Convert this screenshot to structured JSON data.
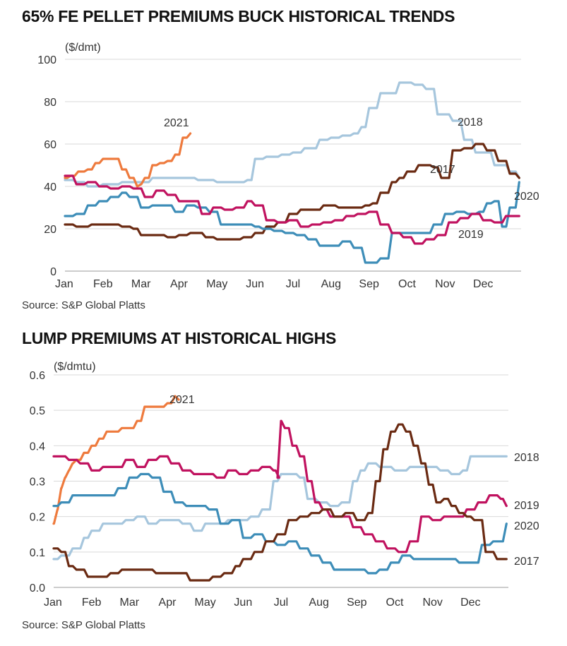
{
  "charts": [
    {
      "title": "65% FE PELLET PREMIUMS BUCK HISTORICAL TRENDS",
      "source": "Source: S&P Global Platts"
    },
    {
      "title": "LUMP PREMIUMS AT HISTORICAL HIGHS",
      "source": "Source: S&P Global Platts"
    }
  ],
  "chart_data": [
    {
      "type": "line",
      "title": "65% FE PELLET PREMIUMS BUCK HISTORICAL TRENDS",
      "ylabel": "($/dmt)",
      "xlabel": "",
      "ylim": [
        0,
        100
      ],
      "yticks": [
        0,
        20,
        40,
        60,
        80,
        100
      ],
      "ytick_labels": [
        "0",
        "20",
        "40",
        "60",
        "80",
        "100"
      ],
      "xlim": [
        0,
        12
      ],
      "xtick_labels": [
        "Jan",
        "Feb",
        "Mar",
        "Apr",
        "May",
        "Jun",
        "Jul",
        "Aug",
        "Sep",
        "Oct",
        "Nov",
        "Dec"
      ],
      "grid": "horizontal",
      "source": "Source: S&P Global Platts",
      "series": [
        {
          "name": "2018",
          "color": "#a6c6dd",
          "x": [
            0,
            0.3,
            0.6,
            1.0,
            1.5,
            2.0,
            2.3,
            3.0,
            3.5,
            4.0,
            4.3,
            4.8,
            5.0,
            5.3,
            5.7,
            6.0,
            6.3,
            6.7,
            7.0,
            7.3,
            7.6,
            7.8,
            8.0,
            8.3,
            8.8,
            9.2,
            9.5,
            9.8,
            10.2,
            10.5,
            10.8,
            11.3,
            11.7,
            11.95
          ],
          "y": [
            43,
            42,
            40,
            41,
            42,
            42,
            44,
            44,
            43,
            42,
            42,
            43,
            53,
            54,
            55,
            56,
            58,
            62,
            63,
            64,
            65,
            68,
            77,
            84,
            89,
            88,
            86,
            74,
            71,
            62,
            56,
            50,
            47,
            44
          ]
        },
        {
          "name": "2021",
          "color": "#ee7a3d",
          "x": [
            0,
            0.15,
            0.35,
            0.6,
            0.8,
            1.0,
            1.25,
            1.5,
            1.7,
            1.9,
            2.0,
            2.1,
            2.3,
            2.5,
            2.7,
            2.9,
            3.0,
            3.1,
            3.3
          ],
          "y": [
            44,
            45,
            47,
            48,
            51,
            53,
            53,
            48,
            44,
            40,
            41,
            44,
            50,
            51,
            52,
            55,
            55,
            63,
            65
          ]
        },
        {
          "name": "2017",
          "color": "#6a2a12",
          "x": [
            0,
            0.3,
            0.7,
            1.0,
            1.5,
            1.8,
            2.0,
            2.3,
            2.7,
            3.0,
            3.3,
            3.7,
            4.0,
            4.3,
            4.7,
            5.0,
            5.3,
            5.6,
            5.9,
            6.2,
            6.5,
            6.8,
            7.2,
            7.6,
            7.9,
            8.1,
            8.3,
            8.6,
            8.8,
            9.0,
            9.3,
            9.5,
            9.7,
            9.9,
            10.2,
            10.5,
            10.8,
            11.1,
            11.4,
            11.7,
            11.95
          ],
          "y": [
            22,
            21,
            22,
            22,
            21,
            20,
            17,
            17,
            16,
            17,
            18,
            16,
            15,
            15,
            16,
            18,
            21,
            23,
            27,
            29,
            29,
            31,
            30,
            30,
            31,
            32,
            37,
            42,
            44,
            47,
            50,
            50,
            49,
            44,
            57,
            58,
            60,
            57,
            52,
            46,
            44
          ]
        },
        {
          "name": "2020",
          "color": "#3d8db8",
          "x": [
            0,
            0.3,
            0.6,
            0.9,
            1.2,
            1.5,
            1.7,
            2.0,
            2.3,
            2.6,
            2.9,
            3.2,
            3.5,
            3.8,
            4.1,
            4.4,
            4.7,
            5.0,
            5.2,
            5.5,
            5.8,
            6.1,
            6.4,
            6.7,
            7.0,
            7.3,
            7.6,
            7.9,
            8.0,
            8.3,
            8.6,
            9.0,
            9.4,
            9.7,
            10.0,
            10.3,
            10.6,
            10.9,
            11.1,
            11.3,
            11.5,
            11.7,
            11.95
          ],
          "y": [
            26,
            27,
            31,
            33,
            35,
            37,
            35,
            30,
            31,
            31,
            28,
            31,
            30,
            28,
            22,
            22,
            22,
            21,
            20,
            19,
            18,
            17,
            15,
            12,
            12,
            14,
            11,
            4,
            4,
            6,
            18,
            18,
            18,
            22,
            27,
            28,
            27,
            28,
            32,
            33,
            21,
            30,
            42
          ]
        },
        {
          "name": "2019",
          "color": "#c0125f",
          "x": [
            0,
            0.3,
            0.6,
            0.9,
            1.2,
            1.5,
            1.8,
            2.1,
            2.4,
            2.7,
            3.0,
            3.3,
            3.6,
            3.9,
            4.2,
            4.5,
            4.8,
            5.0,
            5.3,
            5.6,
            5.9,
            6.2,
            6.5,
            6.8,
            7.1,
            7.4,
            7.7,
            8.0,
            8.3,
            8.6,
            8.9,
            9.2,
            9.5,
            9.8,
            10.1,
            10.4,
            10.7,
            11.0,
            11.3,
            11.6,
            11.95
          ],
          "y": [
            45,
            41,
            42,
            40,
            39,
            40,
            39,
            35,
            38,
            36,
            33,
            33,
            27,
            30,
            29,
            30,
            33,
            31,
            24,
            23,
            24,
            21,
            22,
            23,
            24,
            26,
            27,
            28,
            22,
            18,
            16,
            13,
            15,
            17,
            23,
            25,
            27,
            24,
            23,
            26,
            26
          ]
        }
      ]
    },
    {
      "type": "line",
      "title": "LUMP PREMIUMS AT HISTORICAL HIGHS",
      "ylabel": "($/dmtu)",
      "xlabel": "",
      "ylim": [
        0,
        0.6
      ],
      "yticks": [
        0,
        0.1,
        0.2,
        0.3,
        0.4,
        0.5,
        0.6
      ],
      "ytick_labels": [
        "0.0",
        "0.1",
        "0.2",
        "0.3",
        "0.4",
        "0.5",
        "0.6"
      ],
      "xlim": [
        0,
        12
      ],
      "xtick_labels": [
        "Jan",
        "Feb",
        "Mar",
        "Apr",
        "May",
        "Jun",
        "Jul",
        "Aug",
        "Sep",
        "Oct",
        "Nov",
        "Dec"
      ],
      "grid": "horizontal",
      "source": "Source: S&P Global Platts",
      "series": [
        {
          "name": "2021",
          "color": "#ee7a3d",
          "x": [
            0,
            0.1,
            0.2,
            0.3,
            0.4,
            0.5,
            0.6,
            0.8,
            1.0,
            1.2,
            1.4,
            1.6,
            1.8,
            2.0,
            2.2,
            2.4,
            2.6,
            2.8,
            3.0,
            3.2,
            3.3
          ],
          "y": [
            0.18,
            0.22,
            0.28,
            0.31,
            0.33,
            0.35,
            0.36,
            0.38,
            0.4,
            0.42,
            0.44,
            0.44,
            0.45,
            0.45,
            0.47,
            0.51,
            0.51,
            0.51,
            0.52,
            0.54,
            0.53
          ]
        },
        {
          "name": "2018",
          "color": "#a6c6dd",
          "x": [
            0,
            0.2,
            0.5,
            0.8,
            1.0,
            1.3,
            1.6,
            1.9,
            2.2,
            2.5,
            2.8,
            3.1,
            3.4,
            3.7,
            4.0,
            4.3,
            4.6,
            4.9,
            5.2,
            5.5,
            5.8,
            6.0,
            6.2,
            6.5,
            6.7,
            7.0,
            7.3,
            7.6,
            7.9,
            8.1,
            8.3,
            8.6,
            9.0,
            9.4,
            9.8,
            10.2,
            10.5,
            10.8,
            11.0,
            11.2,
            11.4,
            11.7,
            11.95
          ],
          "y": [
            0.08,
            0.09,
            0.11,
            0.14,
            0.16,
            0.18,
            0.18,
            0.19,
            0.2,
            0.18,
            0.19,
            0.19,
            0.18,
            0.16,
            0.18,
            0.18,
            0.19,
            0.19,
            0.2,
            0.22,
            0.3,
            0.32,
            0.32,
            0.31,
            0.25,
            0.24,
            0.23,
            0.24,
            0.3,
            0.33,
            0.35,
            0.34,
            0.33,
            0.34,
            0.34,
            0.33,
            0.32,
            0.33,
            0.37,
            0.37,
            0.37,
            0.37,
            0.37
          ]
        },
        {
          "name": "2019",
          "color": "#c0125f",
          "x": [
            0,
            0.2,
            0.4,
            0.7,
            1.0,
            1.3,
            1.6,
            1.9,
            2.2,
            2.5,
            2.8,
            3.1,
            3.4,
            3.7,
            4.0,
            4.3,
            4.6,
            4.9,
            5.2,
            5.5,
            5.8,
            5.95,
            6.0,
            6.1,
            6.3,
            6.5,
            6.7,
            6.9,
            7.1,
            7.3,
            7.6,
            7.9,
            8.2,
            8.5,
            8.8,
            9.1,
            9.4,
            9.7,
            10.0,
            10.3,
            10.6,
            10.9,
            11.2,
            11.5,
            11.8,
            11.95
          ],
          "y": [
            0.37,
            0.37,
            0.36,
            0.35,
            0.33,
            0.34,
            0.34,
            0.36,
            0.34,
            0.36,
            0.37,
            0.35,
            0.33,
            0.32,
            0.32,
            0.31,
            0.33,
            0.32,
            0.33,
            0.34,
            0.33,
            0.31,
            0.47,
            0.45,
            0.4,
            0.37,
            0.3,
            0.24,
            0.22,
            0.2,
            0.2,
            0.17,
            0.15,
            0.13,
            0.11,
            0.1,
            0.13,
            0.2,
            0.19,
            0.2,
            0.2,
            0.22,
            0.24,
            0.26,
            0.25,
            0.23
          ]
        },
        {
          "name": "2020",
          "color": "#3d8db8",
          "x": [
            0,
            0.2,
            0.5,
            0.8,
            1.1,
            1.4,
            1.7,
            2.0,
            2.3,
            2.6,
            2.9,
            3.2,
            3.5,
            3.8,
            4.1,
            4.4,
            4.7,
            5.0,
            5.3,
            5.6,
            5.9,
            6.2,
            6.5,
            6.8,
            7.1,
            7.4,
            7.7,
            8.0,
            8.3,
            8.6,
            8.9,
            9.2,
            9.5,
            9.8,
            10.1,
            10.4,
            10.7,
            11.0,
            11.3,
            11.6,
            11.95
          ],
          "y": [
            0.23,
            0.24,
            0.26,
            0.26,
            0.26,
            0.26,
            0.28,
            0.31,
            0.32,
            0.31,
            0.27,
            0.24,
            0.23,
            0.23,
            0.22,
            0.18,
            0.19,
            0.14,
            0.15,
            0.13,
            0.12,
            0.13,
            0.11,
            0.09,
            0.07,
            0.05,
            0.05,
            0.05,
            0.04,
            0.05,
            0.07,
            0.09,
            0.08,
            0.08,
            0.08,
            0.08,
            0.07,
            0.07,
            0.12,
            0.13,
            0.18
          ]
        },
        {
          "name": "2017",
          "color": "#6a2a12",
          "x": [
            0,
            0.2,
            0.4,
            0.6,
            0.9,
            1.2,
            1.5,
            1.8,
            2.1,
            2.4,
            2.7,
            3.0,
            3.3,
            3.6,
            3.9,
            4.2,
            4.5,
            4.8,
            5.0,
            5.3,
            5.6,
            5.9,
            6.2,
            6.5,
            6.8,
            7.1,
            7.4,
            7.7,
            8.0,
            8.3,
            8.5,
            8.7,
            8.9,
            9.1,
            9.3,
            9.5,
            9.7,
            9.9,
            10.1,
            10.3,
            10.5,
            10.7,
            10.9,
            11.1,
            11.4,
            11.7,
            11.95
          ],
          "y": [
            0.11,
            0.1,
            0.06,
            0.05,
            0.03,
            0.03,
            0.04,
            0.05,
            0.05,
            0.05,
            0.04,
            0.04,
            0.04,
            0.02,
            0.02,
            0.03,
            0.04,
            0.06,
            0.08,
            0.1,
            0.13,
            0.15,
            0.19,
            0.2,
            0.21,
            0.22,
            0.2,
            0.21,
            0.19,
            0.21,
            0.3,
            0.39,
            0.44,
            0.46,
            0.44,
            0.4,
            0.35,
            0.29,
            0.24,
            0.25,
            0.23,
            0.21,
            0.2,
            0.19,
            0.1,
            0.08,
            0.08
          ]
        }
      ]
    }
  ]
}
